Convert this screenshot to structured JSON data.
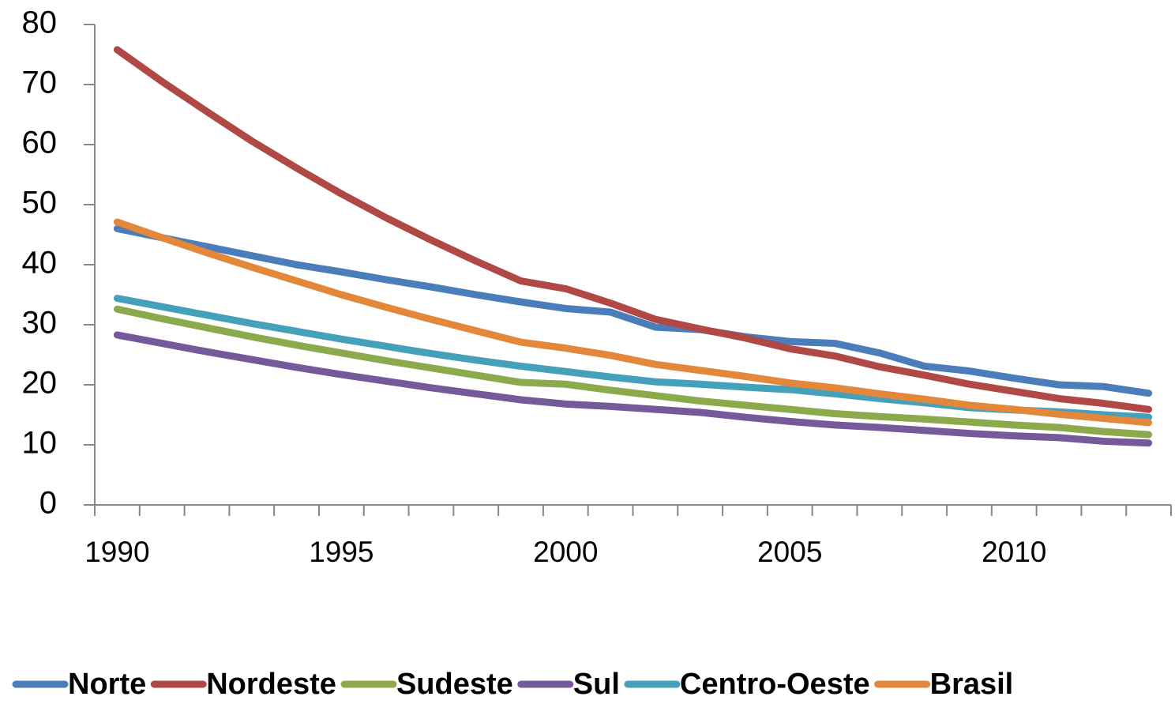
{
  "chart_data": {
    "type": "line",
    "categories": [
      "1990",
      null,
      null,
      null,
      null,
      "1995",
      null,
      null,
      null,
      null,
      "2000",
      null,
      null,
      null,
      null,
      "2005",
      null,
      null,
      null,
      null,
      "2010",
      null,
      null,
      null
    ],
    "series": [
      {
        "name": "Norte",
        "color": "#4a7dba",
        "values": [
          46,
          44.5,
          43,
          41.5,
          40,
          38.8,
          37.5,
          36.3,
          35,
          33.8,
          32.7,
          32.1,
          29.6,
          29.2,
          28,
          27.2,
          26.9,
          25.3,
          23.1,
          22.3,
          21.1,
          20,
          19.7,
          18.6
        ]
      },
      {
        "name": "Nordeste",
        "color": "#b04845",
        "values": [
          75.8,
          70.5,
          65.5,
          60.6,
          56.1,
          51.8,
          47.8,
          44.1,
          40.6,
          37.3,
          36,
          33.6,
          30.9,
          29.3,
          27.8,
          26,
          24.8,
          23,
          21.6,
          20.1,
          18.9,
          17.7,
          16.9,
          15.9
        ]
      },
      {
        "name": "Sudeste",
        "color": "#8caa4c",
        "values": [
          32.6,
          31,
          29.5,
          28,
          26.6,
          25.3,
          24,
          22.8,
          21.6,
          20.4,
          20.1,
          19.1,
          18.2,
          17.3,
          16.6,
          15.9,
          15.2,
          14.7,
          14.3,
          13.8,
          13.3,
          12.9,
          12.2,
          11.7
        ]
      },
      {
        "name": "Sul",
        "color": "#76599a",
        "values": [
          28.3,
          26.9,
          25.5,
          24.2,
          22.9,
          21.7,
          20.6,
          19.5,
          18.5,
          17.5,
          16.8,
          16.4,
          15.9,
          15.4,
          14.6,
          13.9,
          13.3,
          12.9,
          12.4,
          11.9,
          11.5,
          11.2,
          10.6,
          10.3
        ]
      },
      {
        "name": "Centro-Oeste",
        "color": "#45a1bb",
        "values": [
          34.4,
          33,
          31.6,
          30.2,
          28.9,
          27.6,
          26.4,
          25.2,
          24.1,
          23.1,
          22.2,
          21.3,
          20.5,
          20.1,
          19.6,
          19.2,
          18.5,
          17.7,
          17,
          16.2,
          15.8,
          15.5,
          15,
          14.6
        ]
      },
      {
        "name": "Brasil",
        "color": "#e3873a",
        "values": [
          47.1,
          44.5,
          42,
          39.6,
          37.3,
          35,
          32.9,
          30.9,
          29,
          27.1,
          26.1,
          24.9,
          23.4,
          22.4,
          21.4,
          20.3,
          19.5,
          18.5,
          17.6,
          16.6,
          15.9,
          15.1,
          14.4,
          13.7
        ]
      }
    ],
    "ylim": [
      0,
      80
    ],
    "yticks": [
      0,
      10,
      20,
      30,
      40,
      50,
      60,
      70,
      80
    ],
    "legend": "bottom"
  }
}
